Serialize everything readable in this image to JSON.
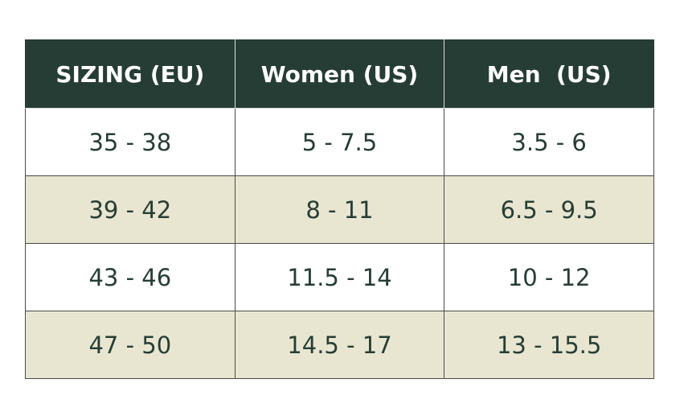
{
  "table": {
    "header": [
      "SIZING (EU)",
      "Women (US)",
      "Men  (US)"
    ],
    "rows": [
      [
        "35 - 38",
        "5 - 7.5",
        "3.5 - 6"
      ],
      [
        "39 - 42",
        "8 - 11",
        "6.5 - 9.5"
      ],
      [
        "43 - 46",
        "11.5 - 14",
        "10 - 12"
      ],
      [
        "47 - 50",
        "14.5 - 17",
        "13 - 15.5"
      ]
    ]
  }
}
